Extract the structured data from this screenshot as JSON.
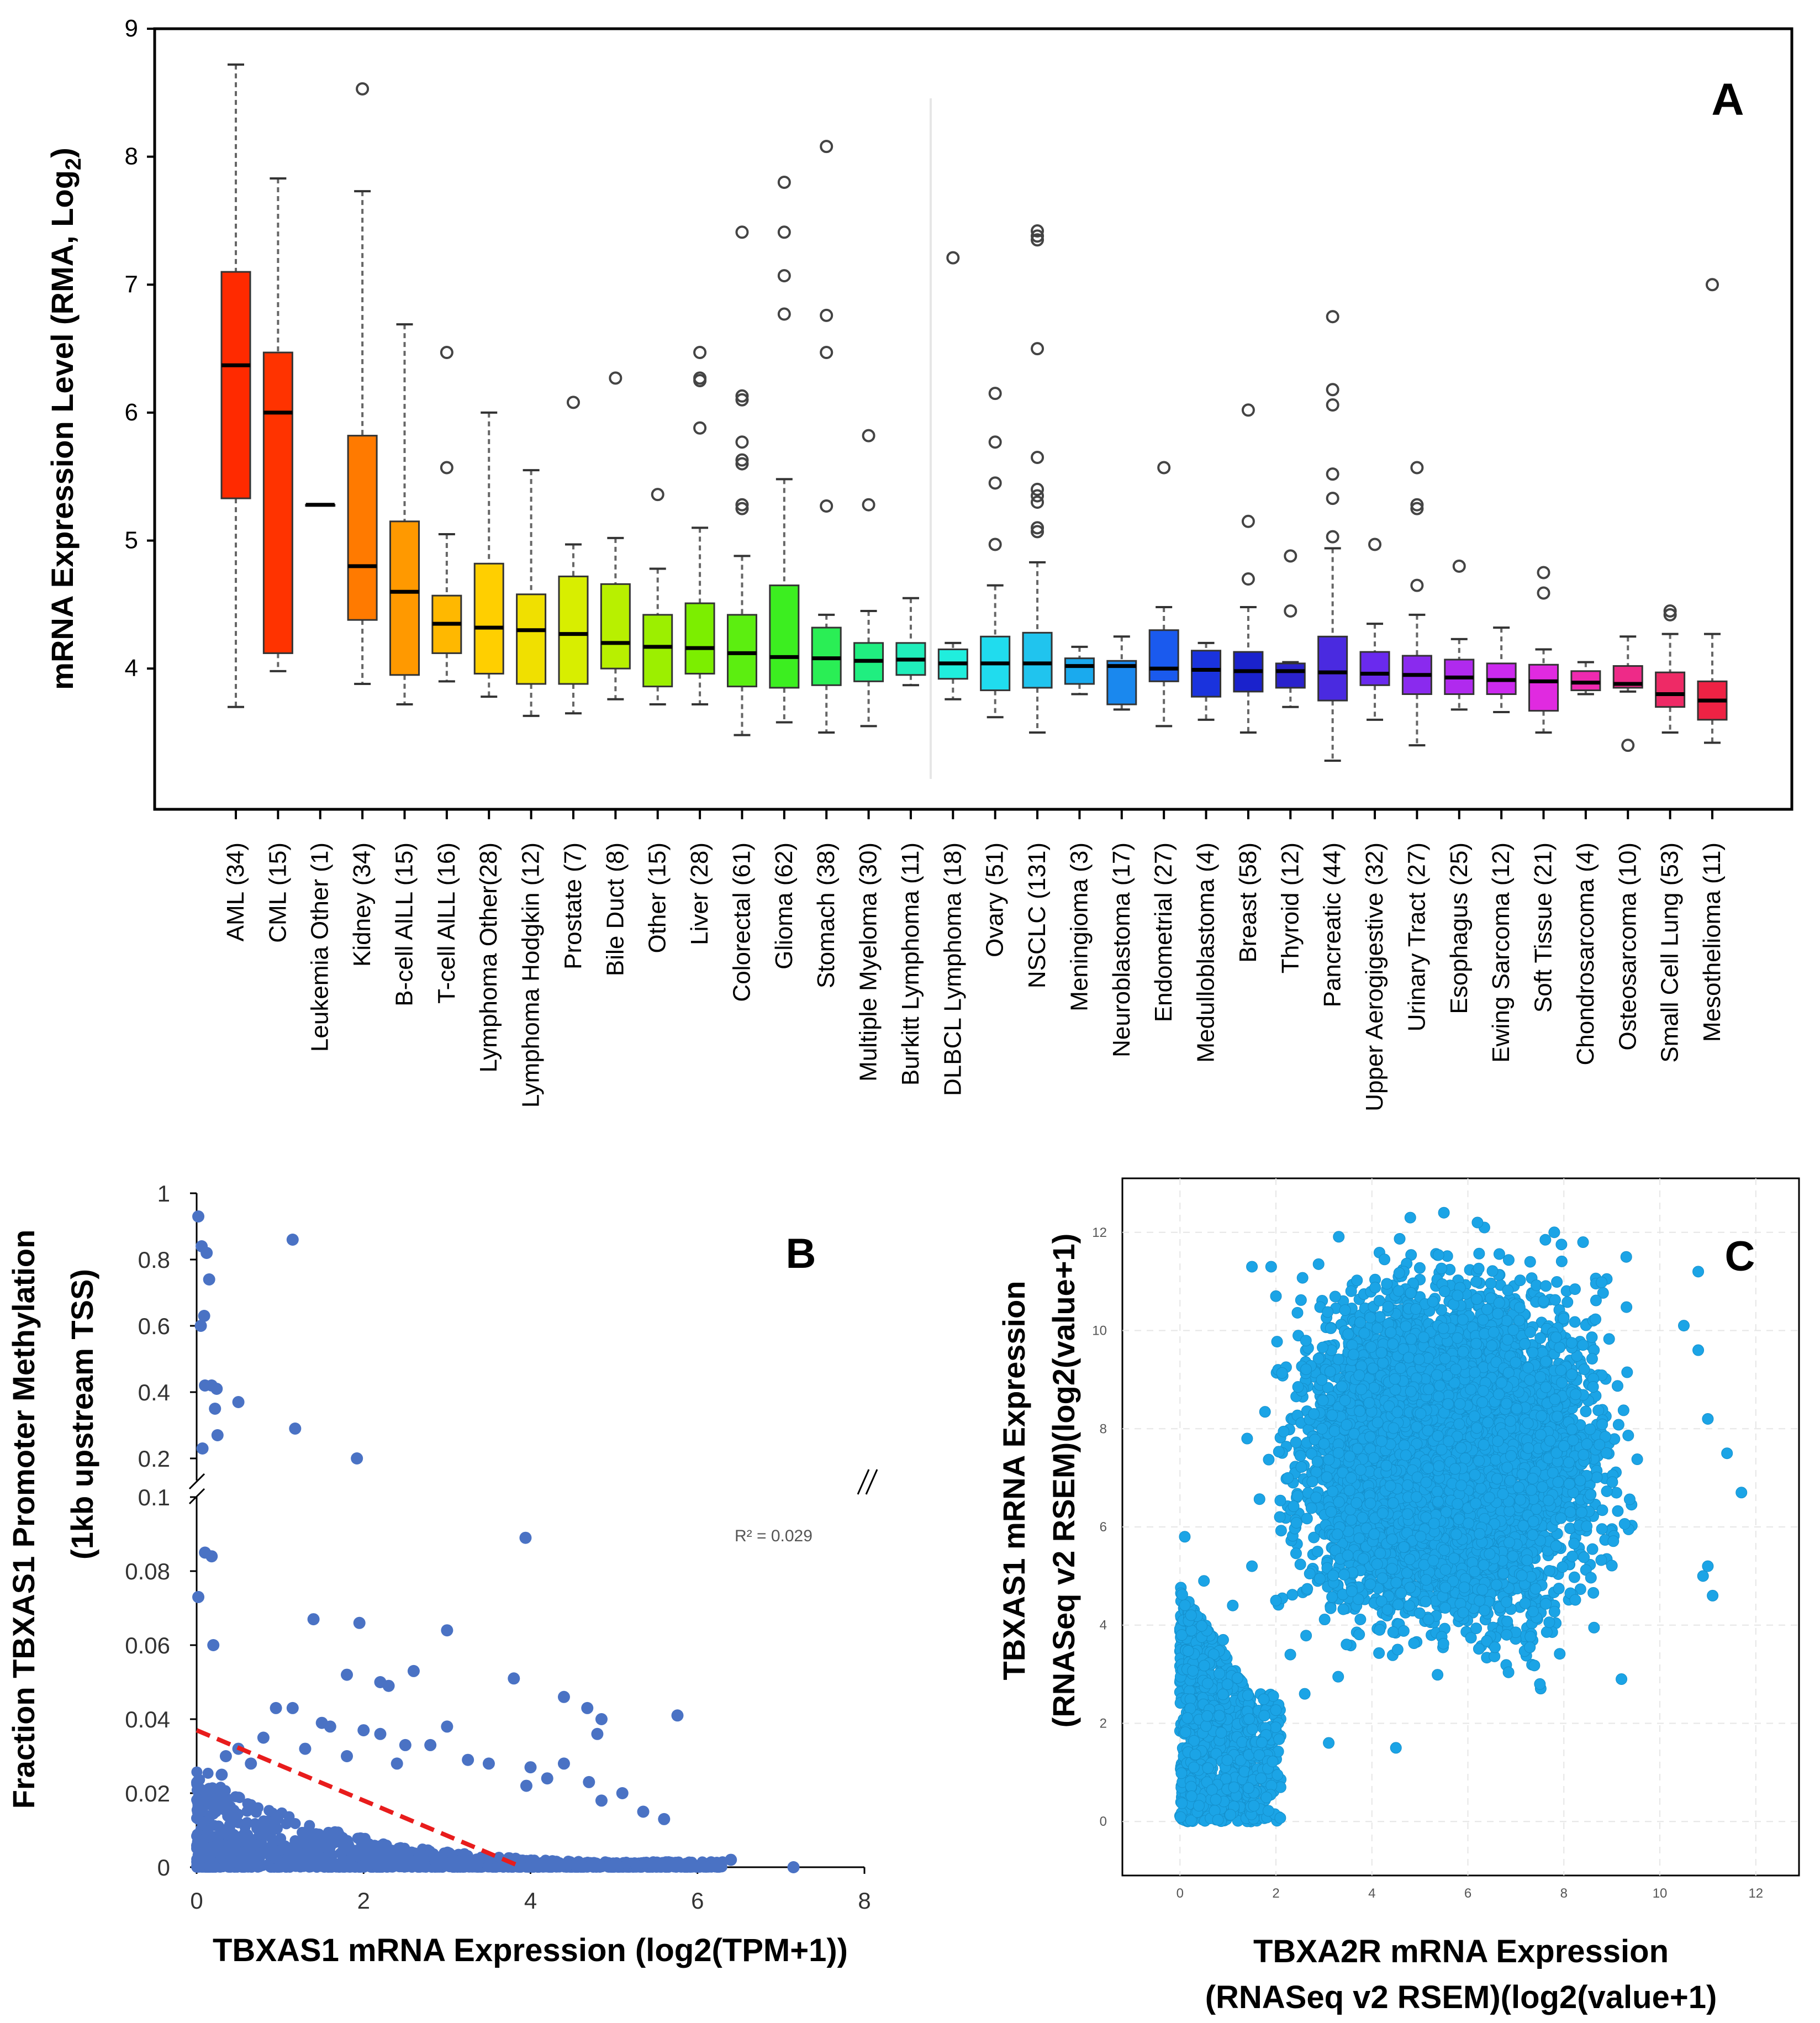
{
  "chart_data": [
    {
      "panel": "A",
      "type": "box",
      "panel_label": "A",
      "ylabel_main": "mRNA Expression Level (RMA, Log",
      "ylabel_sub": "2",
      "ylabel_end": ")",
      "ylim": [
        2.9,
        9
      ],
      "yticks": [
        4,
        5,
        6,
        7,
        8,
        9
      ],
      "categories": [
        "AML (34)",
        "CML (15)",
        "Leukemia Other (1)",
        "Kidney (34)",
        "B-cell AlLL (15)",
        "T-cell AlLL (16)",
        "Lymphoma Other(28)",
        "Lymphoma Hodgkin (12)",
        "Prostate (7)",
        "Bile Duct (8)",
        "Other (15)",
        "Liver (28)",
        "Colorectal (61)",
        "Glioma (62)",
        "Stomach (38)",
        "Multiple Myeloma (30)",
        "Burkitt Lymphoma (11)",
        "DLBCL Lymphoma (18)",
        "Ovary (51)",
        "NSCLC (131)",
        "Meningioma (3)",
        "Neuroblastoma (17)",
        "Endometrial (27)",
        "Medulloblastoma (4)",
        "Breast (58)",
        "Thyroid (12)",
        "Pancreatic (44)",
        "Upper Aerogigestive (32)",
        "Urinary Tract (27)",
        "Esophagus (25)",
        "Ewing Sarcoma (12)",
        "Soft Tissue (21)",
        "Chondrosarcoma (4)",
        "Osteosarcoma (10)",
        "Small Cell Lung (53)",
        "Mesothelioma (11)"
      ],
      "boxes": [
        {
          "min": 3.7,
          "q1": 5.33,
          "median": 6.37,
          "q3": 7.1,
          "max": 8.72,
          "color": "#ff2a00",
          "outliers": []
        },
        {
          "min": 3.98,
          "q1": 4.12,
          "median": 6.0,
          "q3": 6.47,
          "max": 7.83,
          "color": "#ff3300",
          "outliers": []
        },
        {
          "min": 5.28,
          "q1": 5.28,
          "median": 5.28,
          "q3": 5.28,
          "max": 5.28,
          "color": "#ff5500",
          "outliers": []
        },
        {
          "min": 3.88,
          "q1": 4.38,
          "median": 4.8,
          "q3": 5.82,
          "max": 7.73,
          "color": "#ff7a00",
          "outliers": [
            8.53
          ]
        },
        {
          "min": 3.72,
          "q1": 3.95,
          "median": 4.6,
          "q3": 5.15,
          "max": 6.69,
          "color": "#ff9900",
          "outliers": []
        },
        {
          "min": 3.9,
          "q1": 4.12,
          "median": 4.35,
          "q3": 4.57,
          "max": 5.05,
          "color": "#ffb800",
          "outliers": [
            5.57,
            6.47
          ]
        },
        {
          "min": 3.78,
          "q1": 3.96,
          "median": 4.32,
          "q3": 4.82,
          "max": 6.0,
          "color": "#ffcf00",
          "outliers": []
        },
        {
          "min": 3.63,
          "q1": 3.88,
          "median": 4.3,
          "q3": 4.58,
          "max": 5.55,
          "color": "#f0e000",
          "outliers": []
        },
        {
          "min": 3.65,
          "q1": 3.88,
          "median": 4.27,
          "q3": 4.72,
          "max": 4.97,
          "color": "#d8ee00",
          "outliers": [
            6.08
          ]
        },
        {
          "min": 3.76,
          "q1": 4.0,
          "median": 4.2,
          "q3": 4.66,
          "max": 5.02,
          "color": "#b8f000",
          "outliers": [
            6.27
          ]
        },
        {
          "min": 3.72,
          "q1": 3.86,
          "median": 4.17,
          "q3": 4.42,
          "max": 4.78,
          "color": "#9cef00",
          "outliers": [
            5.36
          ]
        },
        {
          "min": 3.72,
          "q1": 3.96,
          "median": 4.16,
          "q3": 4.51,
          "max": 5.1,
          "color": "#7cee00",
          "outliers": [
            5.88,
            6.25,
            6.27,
            6.47
          ]
        },
        {
          "min": 3.48,
          "q1": 3.86,
          "median": 4.12,
          "q3": 4.42,
          "max": 4.88,
          "color": "#5cee10",
          "outliers": [
            5.25,
            5.28,
            5.6,
            5.63,
            5.77,
            6.1,
            6.13,
            7.41
          ]
        },
        {
          "min": 3.58,
          "q1": 3.85,
          "median": 4.09,
          "q3": 4.65,
          "max": 5.48,
          "color": "#3cee20",
          "outliers": [
            6.77,
            7.07,
            7.41,
            7.8
          ]
        },
        {
          "min": 3.5,
          "q1": 3.87,
          "median": 4.08,
          "q3": 4.32,
          "max": 4.42,
          "color": "#2aee55",
          "outliers": [
            5.27,
            6.47,
            6.76,
            8.08
          ]
        },
        {
          "min": 3.55,
          "q1": 3.9,
          "median": 4.06,
          "q3": 4.2,
          "max": 4.45,
          "color": "#20ee80",
          "outliers": [
            5.28,
            5.82
          ]
        },
        {
          "min": 3.87,
          "q1": 3.95,
          "median": 4.07,
          "q3": 4.2,
          "max": 4.55,
          "color": "#20eebb",
          "outliers": []
        },
        {
          "min": 3.76,
          "q1": 3.92,
          "median": 4.04,
          "q3": 4.15,
          "max": 4.2,
          "color": "#20eedd",
          "outliers": [
            7.21
          ]
        },
        {
          "min": 3.62,
          "q1": 3.83,
          "median": 4.04,
          "q3": 4.25,
          "max": 4.65,
          "color": "#20dcee",
          "outliers": [
            4.97,
            5.45,
            5.77,
            6.15
          ]
        },
        {
          "min": 3.5,
          "q1": 3.85,
          "median": 4.04,
          "q3": 4.28,
          "max": 4.83,
          "color": "#20c4ee",
          "outliers": [
            5.07,
            5.1,
            5.3,
            5.35,
            5.4,
            5.65,
            6.5,
            7.35,
            7.38,
            7.42
          ]
        },
        {
          "min": 3.8,
          "q1": 3.88,
          "median": 4.02,
          "q3": 4.08,
          "max": 4.17,
          "color": "#1aaaee",
          "outliers": []
        },
        {
          "min": 3.68,
          "q1": 3.72,
          "median": 4.02,
          "q3": 4.06,
          "max": 4.25,
          "color": "#1a88ee",
          "outliers": []
        },
        {
          "min": 3.55,
          "q1": 3.9,
          "median": 4.0,
          "q3": 4.3,
          "max": 4.48,
          "color": "#1a5aee",
          "outliers": [
            5.57
          ]
        },
        {
          "min": 3.6,
          "q1": 3.78,
          "median": 3.99,
          "q3": 4.14,
          "max": 4.2,
          "color": "#1a33dd",
          "outliers": []
        },
        {
          "min": 3.5,
          "q1": 3.82,
          "median": 3.98,
          "q3": 4.13,
          "max": 4.48,
          "color": "#1a22cc",
          "outliers": [
            4.7,
            5.15,
            6.02
          ]
        },
        {
          "min": 3.7,
          "q1": 3.85,
          "median": 3.98,
          "q3": 4.04,
          "max": 4.05,
          "color": "#2a22cc",
          "outliers": [
            4.45,
            4.88
          ]
        },
        {
          "min": 3.28,
          "q1": 3.75,
          "median": 3.97,
          "q3": 4.25,
          "max": 4.94,
          "color": "#4a2ae0",
          "outliers": [
            5.03,
            5.33,
            5.52,
            6.06,
            6.18,
            6.75
          ]
        },
        {
          "min": 3.6,
          "q1": 3.87,
          "median": 3.96,
          "q3": 4.13,
          "max": 4.35,
          "color": "#6a2aee",
          "outliers": [
            4.97
          ]
        },
        {
          "min": 3.4,
          "q1": 3.8,
          "median": 3.95,
          "q3": 4.1,
          "max": 4.42,
          "color": "#8a2aee",
          "outliers": [
            4.65,
            5.25,
            5.28,
            5.57
          ]
        },
        {
          "min": 3.68,
          "q1": 3.8,
          "median": 3.93,
          "q3": 4.07,
          "max": 4.23,
          "color": "#b02aee",
          "outliers": [
            4.8
          ]
        },
        {
          "min": 3.66,
          "q1": 3.8,
          "median": 3.91,
          "q3": 4.04,
          "max": 4.32,
          "color": "#cc2aee",
          "outliers": []
        },
        {
          "min": 3.5,
          "q1": 3.67,
          "median": 3.9,
          "q3": 4.03,
          "max": 4.15,
          "color": "#e02ae0",
          "outliers": [
            4.59,
            4.75
          ]
        },
        {
          "min": 3.8,
          "q1": 3.83,
          "median": 3.89,
          "q3": 3.98,
          "max": 4.05,
          "color": "#ee2ab0",
          "outliers": []
        },
        {
          "min": 3.82,
          "q1": 3.85,
          "median": 3.88,
          "q3": 4.02,
          "max": 4.25,
          "color": "#ee2a88",
          "outliers": [
            3.4
          ]
        },
        {
          "min": 3.5,
          "q1": 3.7,
          "median": 3.8,
          "q3": 3.97,
          "max": 4.27,
          "color": "#ee2a66",
          "outliers": [
            4.42,
            4.45
          ]
        },
        {
          "min": 3.42,
          "q1": 3.6,
          "median": 3.75,
          "q3": 3.9,
          "max": 4.27,
          "color": "#ee2244",
          "outliers": [
            7.0
          ]
        }
      ]
    },
    {
      "panel": "B",
      "type": "scatter",
      "panel_label": "B",
      "xlabel": "TBXAS1 mRNA Expression (log2(TPM+1))",
      "ylabel_line1": "Fraction TBXAS1 Promoter Methylation",
      "ylabel_line2": "(1kb upstream TSS)",
      "xlim": [
        0,
        8
      ],
      "xticks": [
        0,
        2,
        4,
        6,
        8
      ],
      "upper_yticks": [
        "1",
        "0.8",
        "0.6",
        "0.4",
        "0.2"
      ],
      "lower_yticks": [
        "0.1",
        "0.08",
        "0.06",
        "0.04",
        "0.02",
        "0"
      ],
      "ylim_upper": [
        0.2,
        1.0
      ],
      "ylim_lower": [
        0,
        0.1
      ],
      "r2_label": "R² = 0.029",
      "trendline": {
        "x0": 0,
        "y0": 0.037,
        "x1": 3.9,
        "y1": 0.0,
        "color": "#e81c1c"
      },
      "point_color": "#4a72c4",
      "upper_points": [
        [
          0.02,
          0.93
        ],
        [
          0.05,
          0.6
        ],
        [
          0.06,
          0.84
        ],
        [
          0.09,
          0.63
        ],
        [
          0.12,
          0.82
        ],
        [
          0.15,
          0.74
        ],
        [
          0.1,
          0.42
        ],
        [
          0.18,
          0.42
        ],
        [
          0.24,
          0.41
        ],
        [
          0.22,
          0.35
        ],
        [
          0.25,
          0.27
        ],
        [
          0.07,
          0.23
        ],
        [
          0.5,
          0.37
        ],
        [
          1.15,
          0.86
        ],
        [
          1.18,
          0.29
        ],
        [
          1.92,
          0.2
        ]
      ],
      "lower_points": [
        [
          0.02,
          0.073
        ],
        [
          0.1,
          0.085
        ],
        [
          0.18,
          0.084
        ],
        [
          0.2,
          0.06
        ],
        [
          1.4,
          0.067
        ],
        [
          1.95,
          0.066
        ],
        [
          3.0,
          0.064
        ],
        [
          3.94,
          0.089
        ],
        [
          3.8,
          0.051
        ],
        [
          4.4,
          0.046
        ],
        [
          4.68,
          0.043
        ],
        [
          4.85,
          0.04
        ],
        [
          5.76,
          0.041
        ],
        [
          2.2,
          0.05
        ],
        [
          2.3,
          0.049
        ],
        [
          2.6,
          0.053
        ],
        [
          1.8,
          0.052
        ],
        [
          1.15,
          0.043
        ],
        [
          0.95,
          0.043
        ],
        [
          1.5,
          0.039
        ],
        [
          1.6,
          0.038
        ],
        [
          2.0,
          0.037
        ],
        [
          2.2,
          0.036
        ],
        [
          2.5,
          0.033
        ],
        [
          2.8,
          0.033
        ],
        [
          3.0,
          0.038
        ],
        [
          3.25,
          0.029
        ],
        [
          3.5,
          0.028
        ],
        [
          3.95,
          0.022
        ],
        [
          4.0,
          0.027
        ],
        [
          4.2,
          0.024
        ],
        [
          4.4,
          0.028
        ],
        [
          4.7,
          0.023
        ],
        [
          4.85,
          0.018
        ],
        [
          5.1,
          0.02
        ],
        [
          5.35,
          0.015
        ],
        [
          5.6,
          0.013
        ],
        [
          6.4,
          0.002
        ],
        [
          7.15,
          0.0
        ],
        [
          4.8,
          0.036
        ],
        [
          0.5,
          0.032
        ],
        [
          0.8,
          0.035
        ],
        [
          1.3,
          0.032
        ],
        [
          1.8,
          0.03
        ],
        [
          2.4,
          0.028
        ],
        [
          0.35,
          0.03
        ],
        [
          0.65,
          0.028
        ],
        [
          0.3,
          0.025
        ]
      ]
    },
    {
      "panel": "C",
      "type": "scatter",
      "panel_label": "C",
      "xlabel_line1": "TBXA2R mRNA Expression",
      "xlabel_line2": "(RNASeq v2 RSEM)(log2(value+1)",
      "ylabel_line1": "TBXAS1 mRNA Expression",
      "ylabel_line2": "(RNASeq v2 RSEM)(log2(value+1)",
      "xlim": [
        -1.2,
        12.9
      ],
      "ylim": [
        -1.1,
        13.1
      ],
      "xticks": [
        0,
        2,
        4,
        6,
        8,
        10,
        12
      ],
      "yticks": [
        0,
        2,
        4,
        6,
        8,
        10,
        12
      ],
      "point_color": "#1ba4e6",
      "cluster_main": {
        "center_x": 5.6,
        "center_y": 7.5,
        "spread_x": 1.6,
        "spread_y": 1.8,
        "n_points": 7000
      },
      "cluster_low": {
        "center_x": 0.5,
        "center_y": 1.3,
        "spread_x": 0.5,
        "spread_y": 1.1,
        "n_points": 900
      },
      "outer_points": [
        [
          4.8,
          12.3
        ],
        [
          5.5,
          12.4
        ],
        [
          6.2,
          12.2
        ],
        [
          7.8,
          12.0
        ],
        [
          8.4,
          11.8
        ],
        [
          9.3,
          11.5
        ],
        [
          10.8,
          11.2
        ],
        [
          11.7,
          6.7
        ],
        [
          11.4,
          7.5
        ],
        [
          11.0,
          8.2
        ],
        [
          10.9,
          5.0
        ],
        [
          11.1,
          4.6
        ],
        [
          9.2,
          2.9
        ],
        [
          7.5,
          2.8
        ],
        [
          4.5,
          1.5
        ],
        [
          3.1,
          1.6
        ],
        [
          2.6,
          2.6
        ],
        [
          2.3,
          3.4
        ],
        [
          2.0,
          4.5
        ],
        [
          1.5,
          5.2
        ],
        [
          1.4,
          7.8
        ],
        [
          1.5,
          11.3
        ],
        [
          2.0,
          10.7
        ],
        [
          1.9,
          11.3
        ],
        [
          10.5,
          10.1
        ],
        [
          11.0,
          5.2
        ],
        [
          10.8,
          9.6
        ],
        [
          0.1,
          5.8
        ],
        [
          0.5,
          4.9
        ],
        [
          1.1,
          4.4
        ],
        [
          0.9,
          3.7
        ]
      ]
    }
  ]
}
